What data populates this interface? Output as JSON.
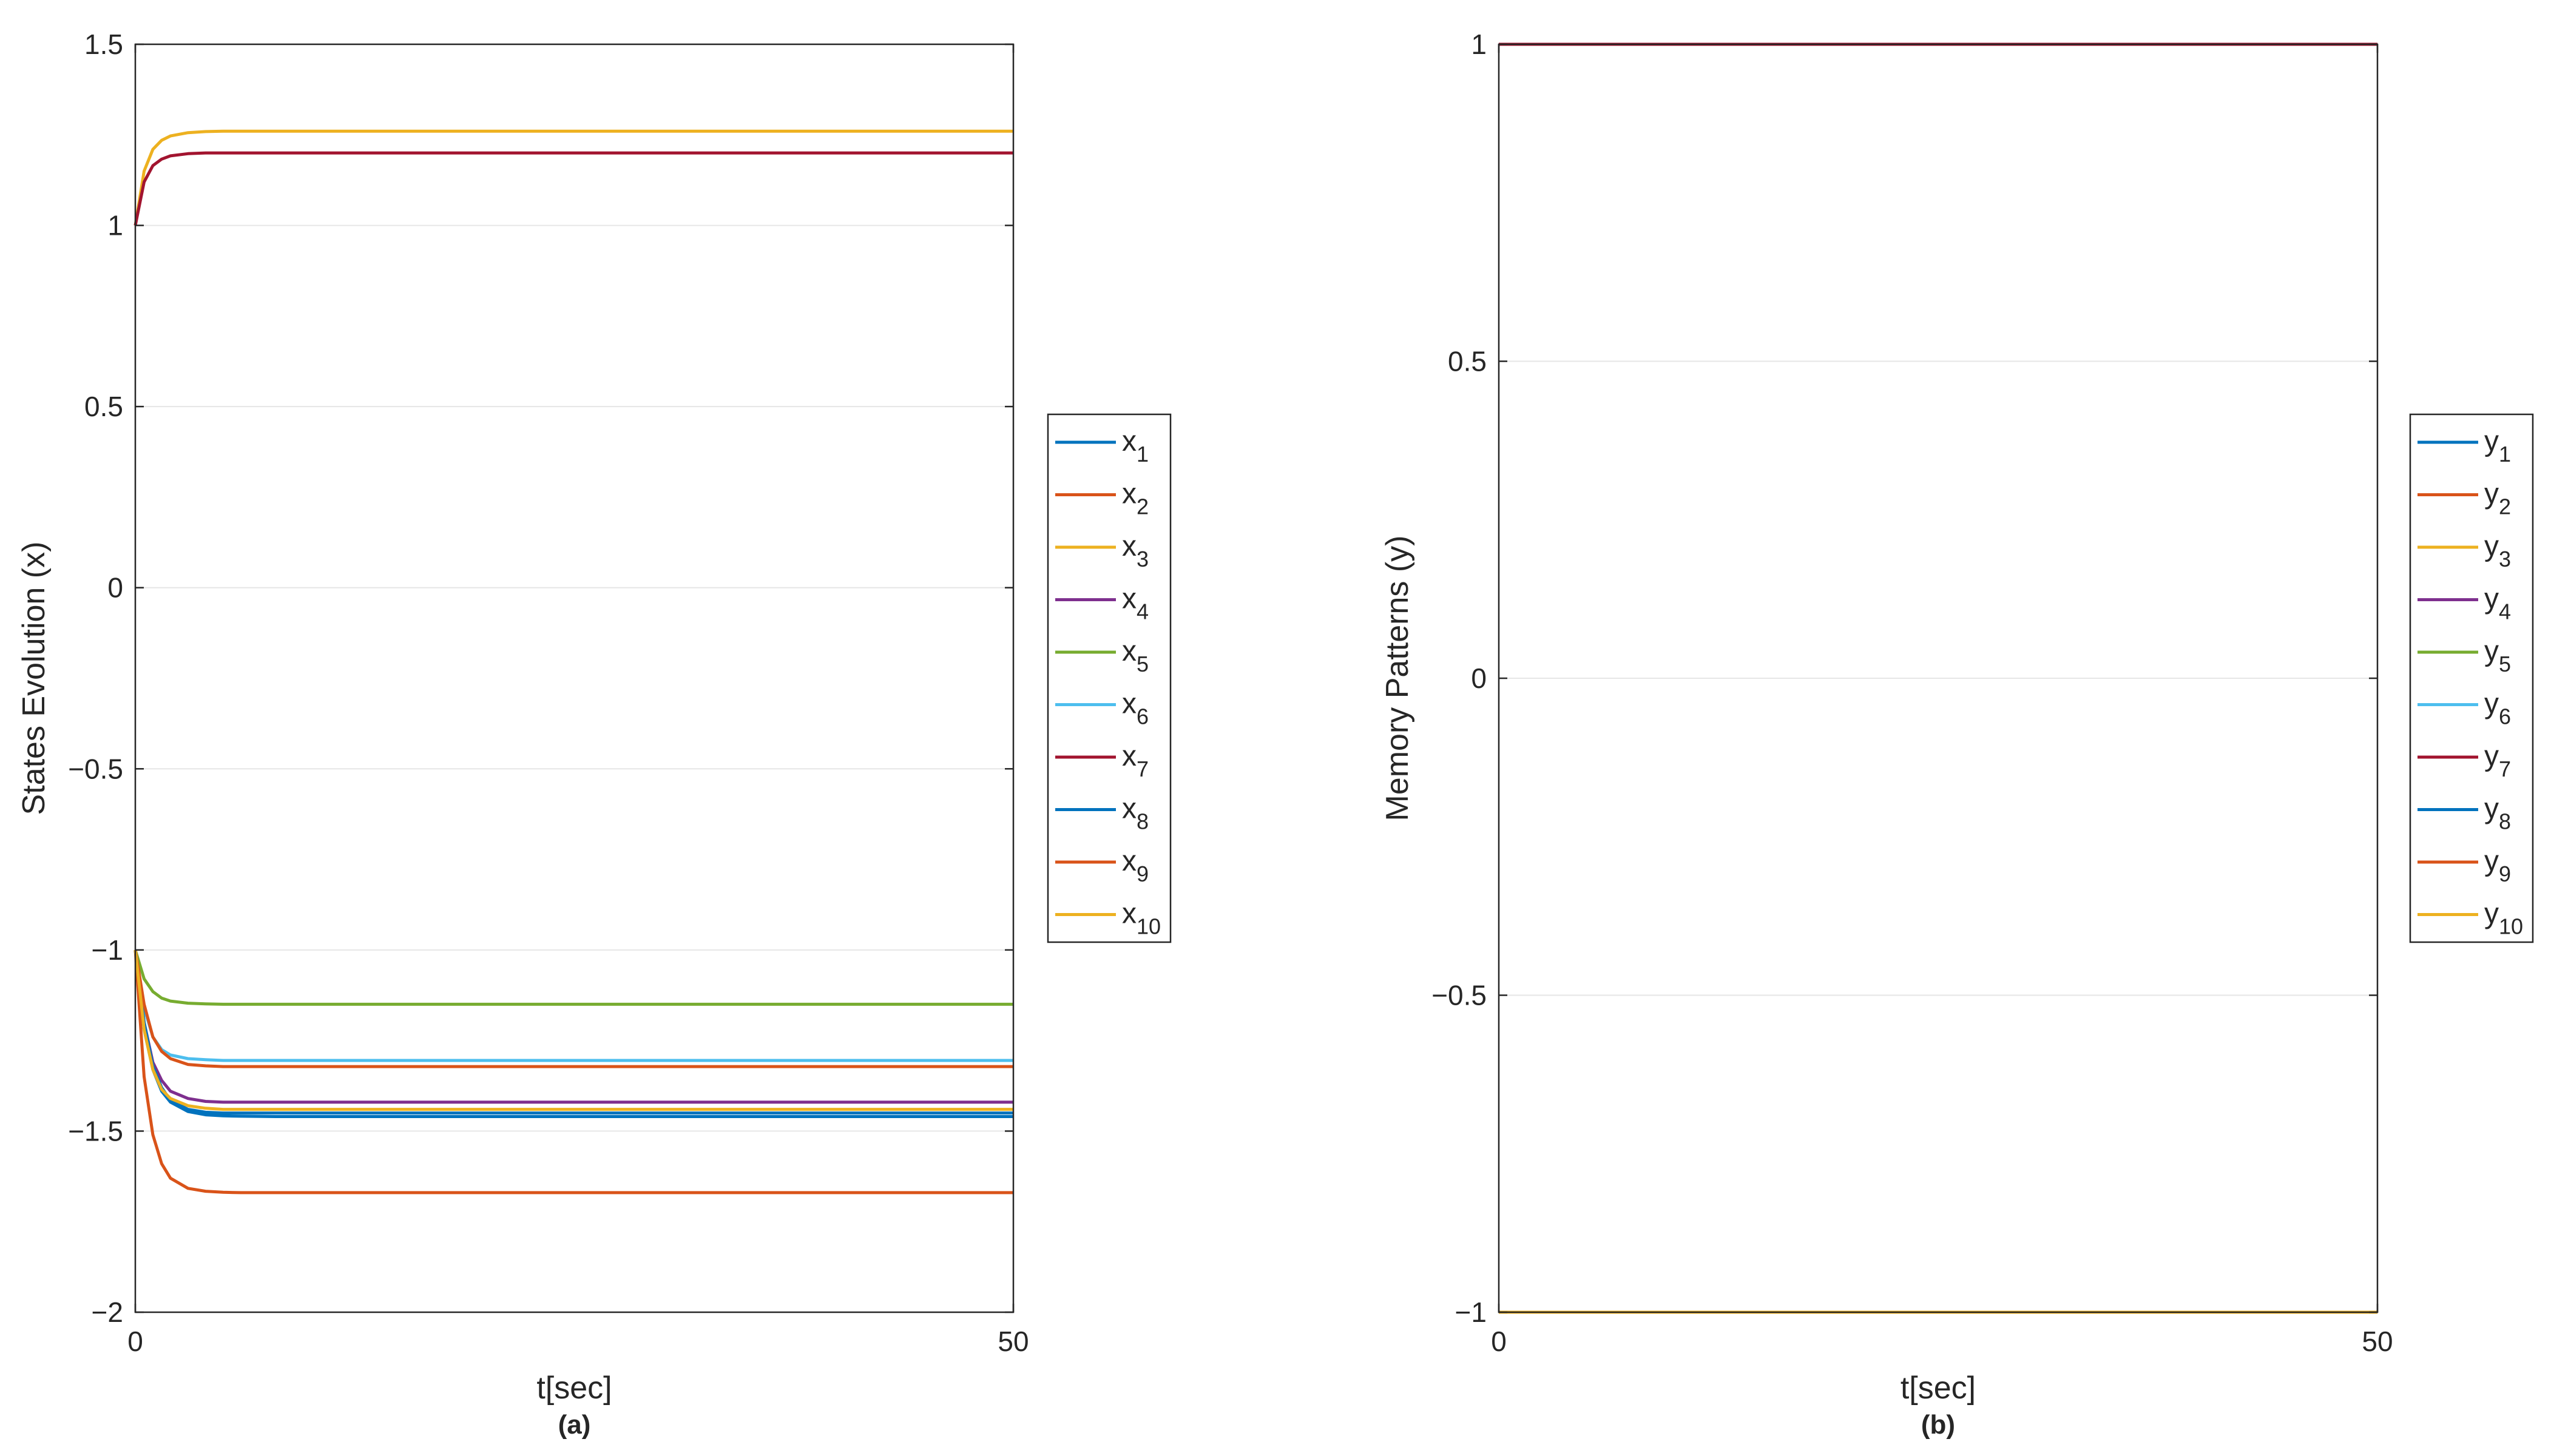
{
  "chart_data": [
    {
      "type": "line",
      "panel_label": "(a)",
      "xlabel": "t[sec]",
      "ylabel": "States Evolution (x)",
      "xlim": [
        0,
        50
      ],
      "ylim": [
        -2,
        1.5
      ],
      "xticks": [
        0,
        50
      ],
      "xtick_labels": [
        "0",
        "50"
      ],
      "yticks": [
        1.5,
        1,
        0.5,
        0,
        -0.5,
        -1,
        -1.5,
        -2
      ],
      "ytick_labels": [
        "1.5",
        "1",
        "0.5",
        "0",
        "−0.5",
        "−1",
        "−1.5",
        "−2"
      ],
      "grid": "horizontal",
      "legend": "right-outside",
      "x": [
        0,
        0.5,
        1,
        1.5,
        2,
        3,
        4,
        5,
        6,
        8,
        10,
        15,
        20,
        30,
        40,
        50
      ],
      "series": [
        {
          "name": "x",
          "sub": "1",
          "color": "#0072BD",
          "values": [
            -1,
            -1.22,
            -1.33,
            -1.39,
            -1.42,
            -1.446,
            -1.455,
            -1.458,
            -1.459,
            -1.46,
            -1.46,
            -1.46,
            -1.46,
            -1.46,
            -1.46,
            -1.46
          ]
        },
        {
          "name": "x",
          "sub": "2",
          "color": "#D95319",
          "values": [
            -1,
            -1.35,
            -1.51,
            -1.59,
            -1.63,
            -1.658,
            -1.666,
            -1.669,
            -1.67,
            -1.67,
            -1.67,
            -1.67,
            -1.67,
            -1.67,
            -1.67,
            -1.67
          ]
        },
        {
          "name": "x",
          "sub": "3",
          "color": "#EDB120",
          "values": [
            1,
            1.15,
            1.21,
            1.235,
            1.247,
            1.256,
            1.259,
            1.26,
            1.26,
            1.26,
            1.26,
            1.26,
            1.26,
            1.26,
            1.26,
            1.26
          ]
        },
        {
          "name": "x",
          "sub": "4",
          "color": "#7E2F8E",
          "values": [
            -1,
            -1.2,
            -1.31,
            -1.36,
            -1.39,
            -1.41,
            -1.418,
            -1.42,
            -1.42,
            -1.42,
            -1.42,
            -1.42,
            -1.42,
            -1.42,
            -1.42,
            -1.42
          ]
        },
        {
          "name": "x",
          "sub": "5",
          "color": "#77AC30",
          "values": [
            -1,
            -1.08,
            -1.115,
            -1.133,
            -1.141,
            -1.147,
            -1.149,
            -1.15,
            -1.15,
            -1.15,
            -1.15,
            -1.15,
            -1.15,
            -1.15,
            -1.15,
            -1.15
          ]
        },
        {
          "name": "x",
          "sub": "6",
          "color": "#4DBEEE",
          "values": [
            -1,
            -1.16,
            -1.24,
            -1.275,
            -1.29,
            -1.3,
            -1.303,
            -1.305,
            -1.305,
            -1.305,
            -1.305,
            -1.305,
            -1.305,
            -1.305,
            -1.305,
            -1.305
          ]
        },
        {
          "name": "x",
          "sub": "7",
          "color": "#A2142F",
          "values": [
            1,
            1.12,
            1.165,
            1.183,
            1.192,
            1.198,
            1.2,
            1.2,
            1.2,
            1.2,
            1.2,
            1.2,
            1.2,
            1.2,
            1.2,
            1.2
          ]
        },
        {
          "name": "x",
          "sub": "8",
          "color": "#0072BD",
          "values": [
            -1,
            -1.2,
            -1.32,
            -1.38,
            -1.415,
            -1.44,
            -1.448,
            -1.45,
            -1.45,
            -1.45,
            -1.45,
            -1.45,
            -1.45,
            -1.45,
            -1.45,
            -1.45
          ]
        },
        {
          "name": "x",
          "sub": "9",
          "color": "#D95319",
          "values": [
            -1,
            -1.15,
            -1.24,
            -1.28,
            -1.3,
            -1.316,
            -1.32,
            -1.322,
            -1.322,
            -1.322,
            -1.322,
            -1.322,
            -1.322,
            -1.322,
            -1.322,
            -1.322
          ]
        },
        {
          "name": "x",
          "sub": "10",
          "color": "#EDB120",
          "values": [
            -1,
            -1.22,
            -1.33,
            -1.385,
            -1.41,
            -1.43,
            -1.437,
            -1.44,
            -1.44,
            -1.44,
            -1.44,
            -1.44,
            -1.44,
            -1.44,
            -1.44,
            -1.44
          ]
        }
      ]
    },
    {
      "type": "line",
      "panel_label": "(b)",
      "xlabel": "t[sec]",
      "ylabel": "Memory Patterns (y)",
      "xlim": [
        0,
        50
      ],
      "ylim": [
        -1,
        1
      ],
      "xticks": [
        0,
        50
      ],
      "xtick_labels": [
        "0",
        "50"
      ],
      "yticks": [
        1,
        0.5,
        0,
        -0.5,
        -1
      ],
      "ytick_labels": [
        "1",
        "0.5",
        "0",
        "−0.5",
        "−1"
      ],
      "grid": "horizontal",
      "legend": "right-outside",
      "x": [
        0,
        50
      ],
      "series": [
        {
          "name": "y",
          "sub": "1",
          "color": "#0072BD",
          "values": [
            -1,
            -1
          ]
        },
        {
          "name": "y",
          "sub": "2",
          "color": "#D95319",
          "values": [
            -1,
            -1
          ]
        },
        {
          "name": "y",
          "sub": "3",
          "color": "#EDB120",
          "values": [
            1,
            1
          ]
        },
        {
          "name": "y",
          "sub": "4",
          "color": "#7E2F8E",
          "values": [
            -1,
            -1
          ]
        },
        {
          "name": "y",
          "sub": "5",
          "color": "#77AC30",
          "values": [
            -1,
            -1
          ]
        },
        {
          "name": "y",
          "sub": "6",
          "color": "#4DBEEE",
          "values": [
            -1,
            -1
          ]
        },
        {
          "name": "y",
          "sub": "7",
          "color": "#A2142F",
          "values": [
            1,
            1
          ]
        },
        {
          "name": "y",
          "sub": "8",
          "color": "#0072BD",
          "values": [
            -1,
            -1
          ]
        },
        {
          "name": "y",
          "sub": "9",
          "color": "#D95319",
          "values": [
            -1,
            -1
          ]
        },
        {
          "name": "y",
          "sub": "10",
          "color": "#EDB120",
          "values": [
            -1,
            -1
          ]
        }
      ]
    }
  ]
}
